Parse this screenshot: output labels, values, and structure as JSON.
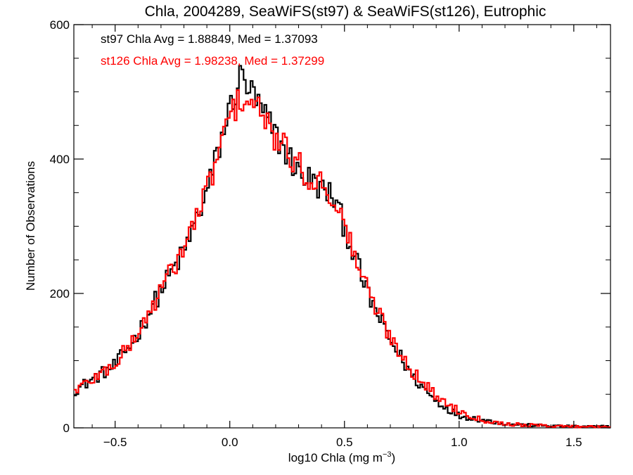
{
  "chart_data": {
    "type": "line",
    "style": "step histogram",
    "title": "Chla, 2004289, SeaWiFS(st97) & SeaWiFS(st126), Eutrophic",
    "xlabel_main": "log10 Chla (mg m",
    "xlabel_sup": "−3",
    "xlabel_close": ")",
    "ylabel": "Number of Observations",
    "xlim": [
      -0.68,
      1.66
    ],
    "ylim": [
      0,
      600
    ],
    "x_ticks": [
      -0.5,
      0.0,
      0.5,
      1.0,
      1.5
    ],
    "x_tick_labels": [
      "−0.5",
      "0.0",
      "0.5",
      "1.0",
      "1.5"
    ],
    "y_ticks": [
      0,
      200,
      400,
      600
    ],
    "y_tick_labels": [
      "0",
      "200",
      "400",
      "600"
    ],
    "annotations": [
      {
        "text": "st97 Chla Avg = 1.88849, Med = 1.37093",
        "color": "#000000"
      },
      {
        "text": "st126 Chla Avg = 1.98238, Med = 1.37299",
        "color": "#ff0000"
      }
    ],
    "bin_width": 0.01,
    "curve_knots": {
      "x": [
        -0.68,
        -0.6,
        -0.5,
        -0.4,
        -0.3,
        -0.2,
        -0.1,
        0.0,
        0.05,
        0.1,
        0.2,
        0.3,
        0.35,
        0.4,
        0.45,
        0.5,
        0.6,
        0.7,
        0.8,
        0.9,
        1.0,
        1.1,
        1.2,
        1.3,
        1.4,
        1.5,
        1.66
      ],
      "y": [
        55,
        72,
        95,
        140,
        205,
        265,
        350,
        465,
        500,
        490,
        430,
        385,
        370,
        360,
        345,
        300,
        200,
        130,
        80,
        45,
        22,
        12,
        6,
        4,
        3,
        2,
        2
      ]
    },
    "series": [
      {
        "id": "st97",
        "color": "#000000",
        "knot_offsets": [
          0,
          0,
          -2,
          0,
          0,
          -3,
          0,
          10,
          25,
          5,
          5,
          -5,
          0,
          -5,
          0,
          0,
          0,
          0,
          -5,
          -5,
          -4,
          0,
          0,
          0,
          0,
          0,
          0
        ]
      },
      {
        "id": "st126",
        "color": "#ff0000",
        "knot_offsets": [
          0,
          0,
          0,
          0,
          0,
          3,
          2,
          0,
          -10,
          -5,
          0,
          5,
          0,
          5,
          0,
          0,
          5,
          5,
          3,
          2,
          3,
          0,
          0,
          0,
          0,
          0,
          0
        ]
      }
    ],
    "grid": false,
    "legend": "none"
  }
}
